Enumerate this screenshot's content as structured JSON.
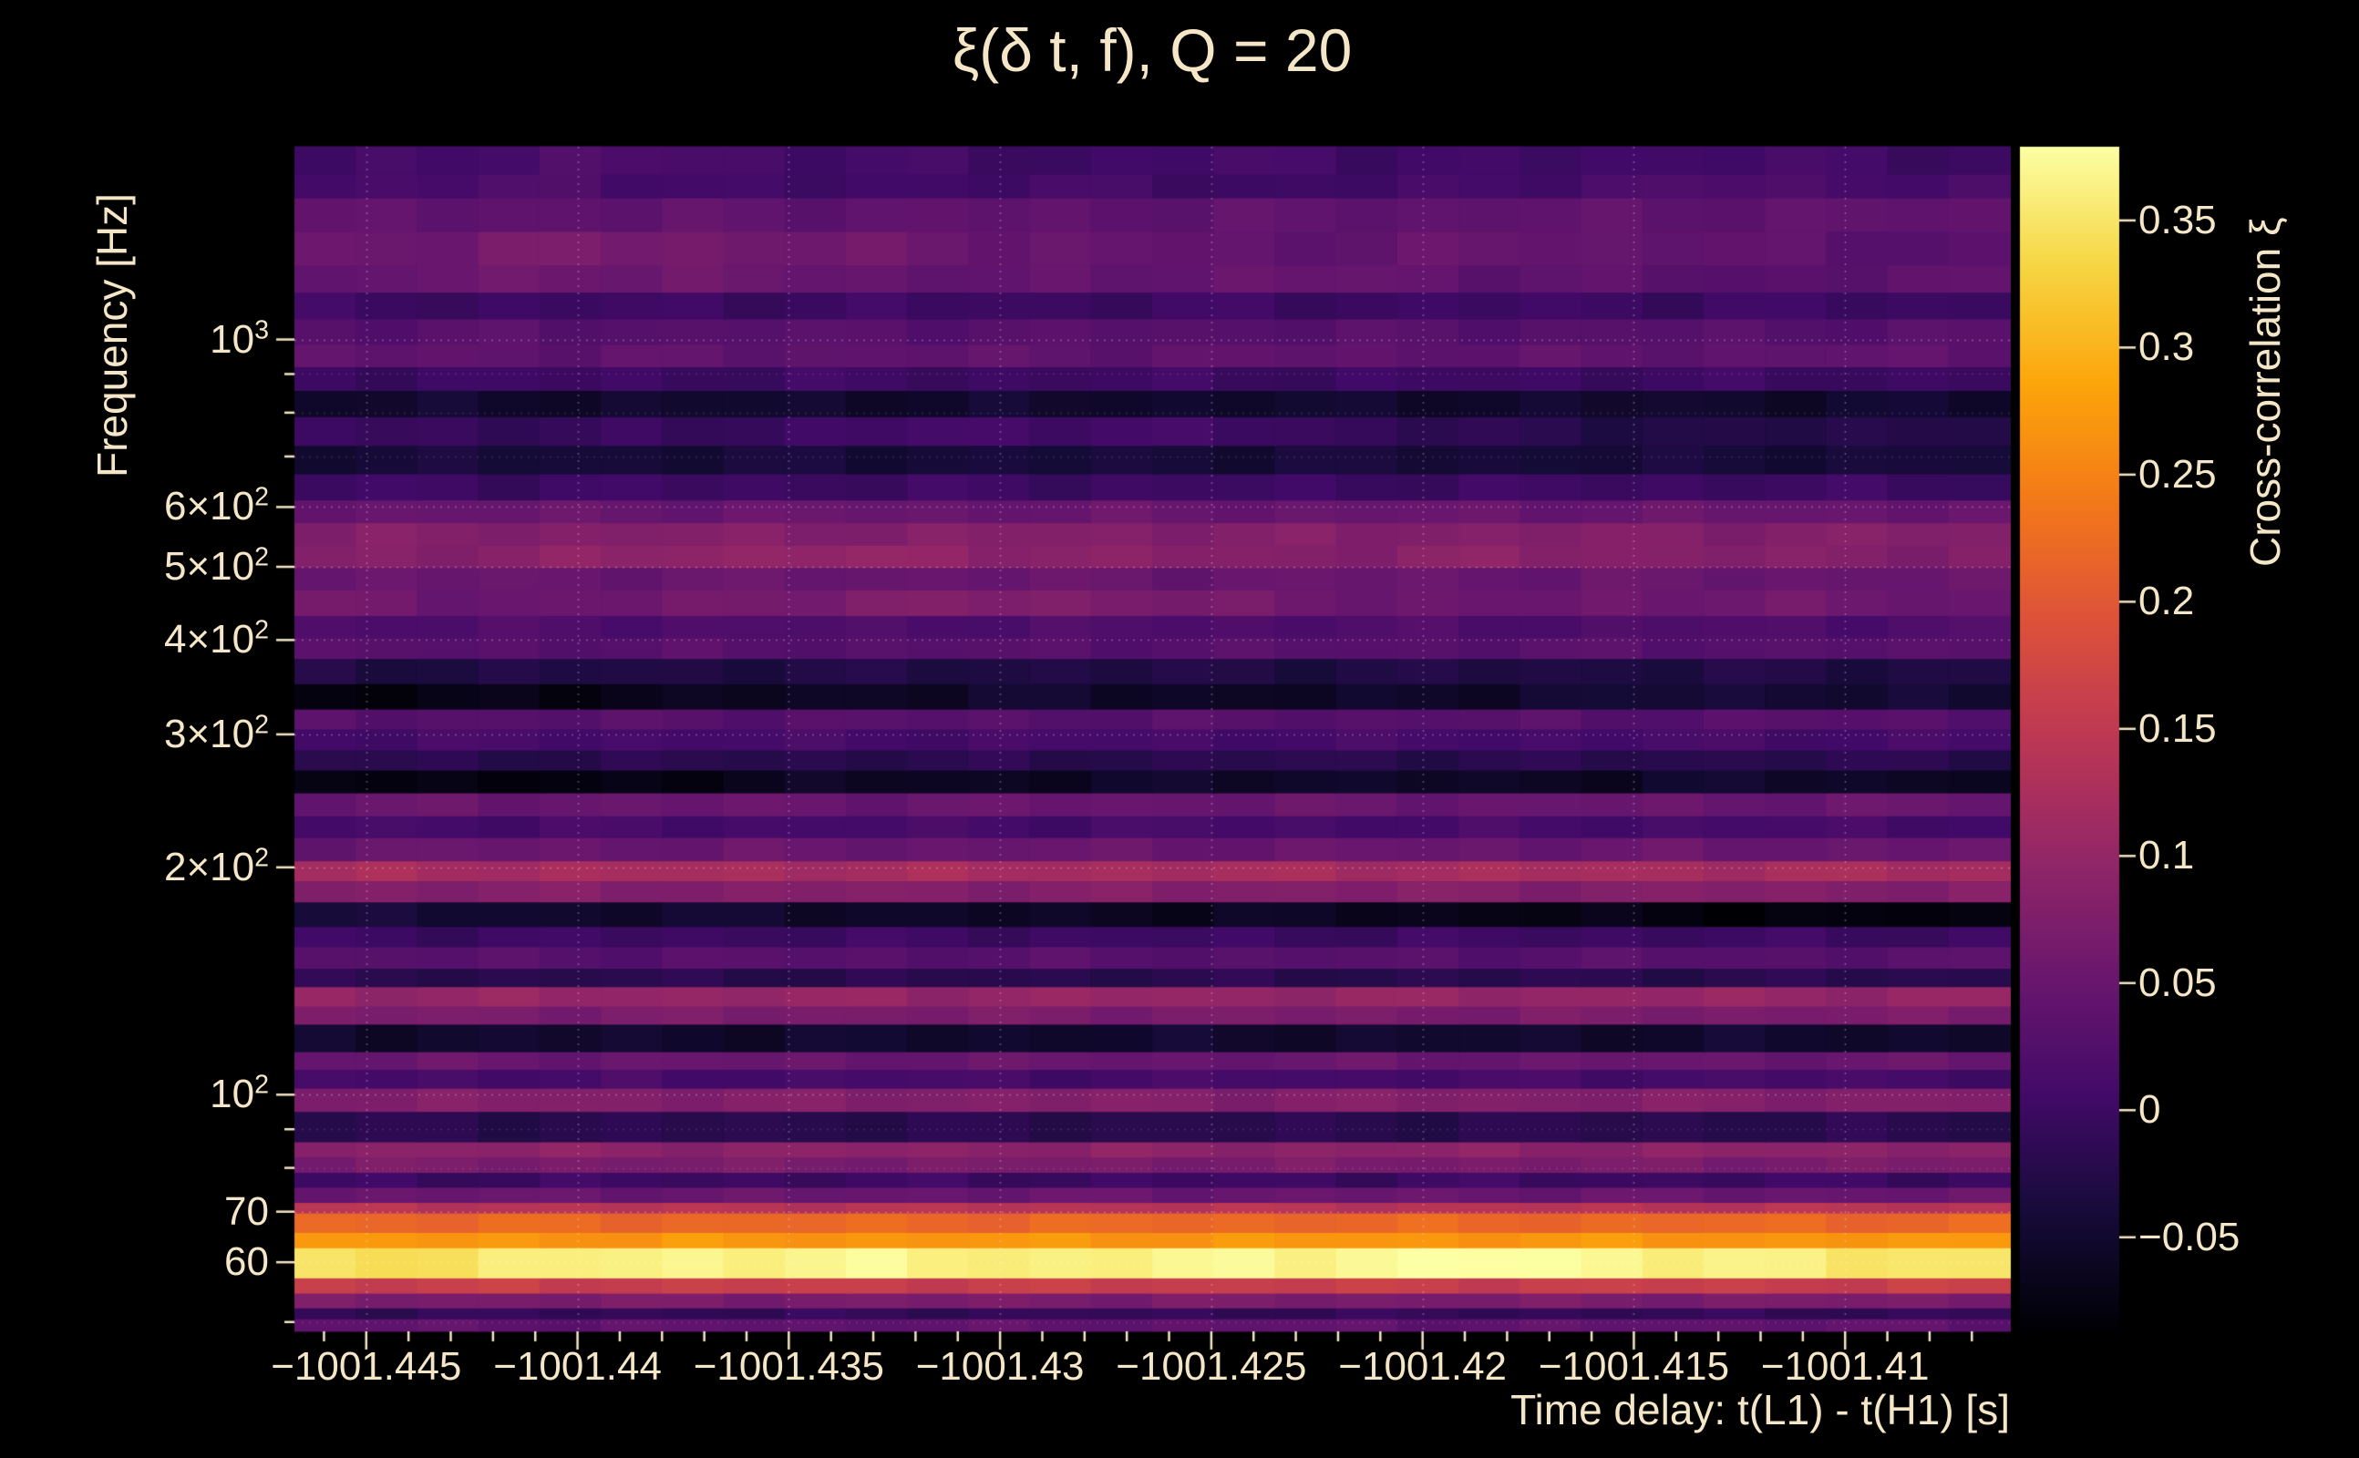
{
  "title": "ξ(δ t, f), Q = 20",
  "colors": {
    "background": "#000000",
    "text": "#f4e6c6",
    "grid": "#ffffff"
  },
  "chart_data": {
    "type": "heatmap",
    "title": "ξ(δ t, f), Q = 20",
    "xlabel": "Time delay: t(L1) - t(H1) [s]",
    "ylabel": "Frequency [Hz]",
    "colorbar_label": "Cross-correlation ξ",
    "x_range": [
      -1001.4467,
      -1001.4061
    ],
    "x_minor_step": 0.001,
    "y_range_hz": [
      48.6,
      1800
    ],
    "y_scale": "log",
    "value_range": [
      -0.087,
      0.379
    ],
    "x_ticks": [
      {
        "v": -1001.445,
        "label": "−1001.445"
      },
      {
        "v": -1001.44,
        "label": "−1001.44"
      },
      {
        "v": -1001.435,
        "label": "−1001.435"
      },
      {
        "v": -1001.43,
        "label": "−1001.43"
      },
      {
        "v": -1001.425,
        "label": "−1001.425"
      },
      {
        "v": -1001.42,
        "label": "−1001.42"
      },
      {
        "v": -1001.415,
        "label": "−1001.415"
      },
      {
        "v": -1001.41,
        "label": "−1001.41"
      }
    ],
    "y_ticks": [
      {
        "v": 1000,
        "base": "10",
        "exp": "3"
      },
      {
        "v": 600,
        "base": "6×10",
        "exp": "2"
      },
      {
        "v": 500,
        "base": "5×10",
        "exp": "2"
      },
      {
        "v": 400,
        "base": "4×10",
        "exp": "2"
      },
      {
        "v": 300,
        "base": "3×10",
        "exp": "2"
      },
      {
        "v": 200,
        "base": "2×10",
        "exp": "2"
      },
      {
        "v": 100,
        "base": "10",
        "exp": "2"
      },
      {
        "v": 70,
        "base": "70"
      },
      {
        "v": 60,
        "base": "60"
      }
    ],
    "y_minor_ticks": [
      50,
      60,
      70,
      80,
      90,
      100,
      200,
      300,
      400,
      500,
      600,
      700,
      800,
      900,
      1000
    ],
    "colorbar_ticks": [
      {
        "v": 0.35,
        "label": "0.35"
      },
      {
        "v": 0.3,
        "label": "0.3"
      },
      {
        "v": 0.25,
        "label": "0.25"
      },
      {
        "v": 0.2,
        "label": "0.2"
      },
      {
        "v": 0.15,
        "label": "0.15"
      },
      {
        "v": 0.1,
        "label": "0.1"
      },
      {
        "v": 0.05,
        "label": "0.05"
      },
      {
        "v": 0.0,
        "label": "0"
      },
      {
        "v": -0.05,
        "label": "−0.05"
      }
    ],
    "colormap": "inferno",
    "colormap_stops": [
      [
        0.0,
        "#000004"
      ],
      [
        0.1,
        "#160b39"
      ],
      [
        0.2,
        "#420a68"
      ],
      [
        0.3,
        "#6a176e"
      ],
      [
        0.4,
        "#932667"
      ],
      [
        0.5,
        "#bc3754"
      ],
      [
        0.6,
        "#dd513a"
      ],
      [
        0.7,
        "#f37819"
      ],
      [
        0.8,
        "#fca50a"
      ],
      [
        0.9,
        "#f6d543"
      ],
      [
        1.0,
        "#fcffa4"
      ]
    ],
    "n_time_bins": 28,
    "rows": [
      {
        "f": [
          48.6,
          50.5
        ],
        "v": 0.04
      },
      {
        "f": [
          50.5,
          52.2
        ],
        "v": -0.01
      },
      {
        "f": [
          52.2,
          54.6
        ],
        "v": 0.07
      },
      {
        "f": [
          54.6,
          57.2
        ],
        "v": 0.16
      },
      {
        "f": [
          57.2,
          62.7
        ],
        "v": [
          0.34,
          0.36,
          0.37,
          0.36,
          0.37,
          0.38,
          0.36,
          0.35
        ]
      },
      {
        "f": [
          62.7,
          65.7
        ],
        "v": 0.27
      },
      {
        "f": [
          65.7,
          69.7
        ],
        "v": 0.22
      },
      {
        "f": [
          69.7,
          72.0
        ],
        "v": 0.14
      },
      {
        "f": [
          72.0,
          75.4
        ],
        "v": 0.05
      },
      {
        "f": [
          75.4,
          78.9
        ],
        "v": 0.0
      },
      {
        "f": [
          78.9,
          82.7
        ],
        "v": 0.07
      },
      {
        "f": [
          82.7,
          86.6
        ],
        "v": 0.09
      },
      {
        "f": [
          86.6,
          95.0
        ],
        "v": -0.02
      },
      {
        "f": [
          95.0,
          102
        ],
        "v": 0.08
      },
      {
        "f": [
          102,
          108
        ],
        "v": 0.01
      },
      {
        "f": [
          108,
          114
        ],
        "v": 0.05
      },
      {
        "f": [
          114,
          124
        ],
        "v": -0.05
      },
      {
        "f": [
          124,
          131
        ],
        "v": 0.07
      },
      {
        "f": [
          131,
          139
        ],
        "v": 0.1
      },
      {
        "f": [
          139,
          147
        ],
        "v": -0.02
      },
      {
        "f": [
          147,
          157
        ],
        "v": 0.03
      },
      {
        "f": [
          157,
          167
        ],
        "v": 0.0
      },
      {
        "f": [
          167,
          180
        ],
        "v": [
          -0.04,
          -0.05,
          -0.05,
          -0.06,
          -0.06,
          -0.07,
          -0.08,
          -0.08
        ]
      },
      {
        "f": [
          180,
          192
        ],
        "v": 0.08
      },
      {
        "f": [
          192,
          204
        ],
        "v": 0.12
      },
      {
        "f": [
          204,
          219
        ],
        "v": 0.05
      },
      {
        "f": [
          219,
          234
        ],
        "v": 0.01
      },
      {
        "f": [
          234,
          251
        ],
        "v": 0.05
      },
      {
        "f": [
          251,
          269
        ],
        "v": [
          -0.07,
          -0.08,
          -0.06,
          -0.06,
          -0.05,
          -0.06,
          -0.05,
          -0.06
        ]
      },
      {
        "f": [
          269,
          286
        ],
        "v": -0.02
      },
      {
        "f": [
          286,
          305
        ],
        "v": 0.01
      },
      {
        "f": [
          305,
          324
        ],
        "v": 0.03
      },
      {
        "f": [
          324,
          350
        ],
        "v": [
          -0.08,
          -0.07,
          -0.06,
          -0.05,
          -0.06,
          -0.05,
          -0.04,
          -0.05
        ]
      },
      {
        "f": [
          350,
          378
        ],
        "v": -0.03
      },
      {
        "f": [
          378,
          403
        ],
        "v": 0.03
      },
      {
        "f": [
          403,
          431
        ],
        "v": 0.02
      },
      {
        "f": [
          431,
          466
        ],
        "v": [
          0.06,
          0.05,
          0.07,
          0.08,
          0.06,
          0.05,
          0.06,
          0.05
        ]
      },
      {
        "f": [
          466,
          499
        ],
        "v": 0.05
      },
      {
        "f": [
          499,
          534
        ],
        "v": [
          0.08,
          0.09,
          0.1,
          0.09,
          0.08,
          0.09,
          0.08,
          0.08
        ]
      },
      {
        "f": [
          534,
          572
        ],
        "v": 0.08
      },
      {
        "f": [
          572,
          613
        ],
        "v": 0.05
      },
      {
        "f": [
          613,
          664
        ],
        "v": 0.0
      },
      {
        "f": [
          664,
          724
        ],
        "v": -0.04
      },
      {
        "f": [
          724,
          790
        ],
        "v": [
          0.0,
          -0.01,
          0.0,
          0.01,
          0.0,
          -0.02,
          -0.03,
          -0.02
        ]
      },
      {
        "f": [
          790,
          856
        ],
        "v": -0.05
      },
      {
        "f": [
          856,
          920
        ],
        "v": 0.0
      },
      {
        "f": [
          920,
          985
        ],
        "v": 0.04
      },
      {
        "f": [
          985,
          1065
        ],
        "v": 0.03
      },
      {
        "f": [
          1065,
          1155
        ],
        "v": 0.0
      },
      {
        "f": [
          1155,
          1255
        ],
        "v": [
          0.04,
          0.06,
          0.05,
          0.04,
          0.05,
          0.04,
          0.03,
          0.04
        ]
      },
      {
        "f": [
          1255,
          1390
        ],
        "v": [
          0.05,
          0.07,
          0.06,
          0.05,
          0.04,
          0.05,
          0.04,
          0.03
        ]
      },
      {
        "f": [
          1390,
          1540
        ],
        "v": 0.04
      },
      {
        "f": [
          1540,
          1655
        ],
        "v": [
          0.01,
          0.02,
          0.0,
          0.01,
          0.0,
          0.01,
          0.02,
          0.01
        ]
      },
      {
        "f": [
          1655,
          1800
        ],
        "v": [
          0.0,
          0.02,
          0.01,
          0.0,
          0.01,
          0.0,
          0.01,
          0.0
        ]
      }
    ]
  }
}
